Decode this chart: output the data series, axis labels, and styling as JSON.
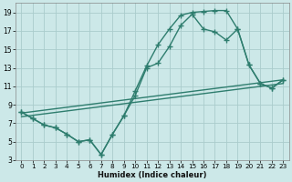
{
  "xlabel": "Humidex (Indice chaleur)",
  "bg_color": "#cce8e8",
  "grid_color": "#aacccc",
  "line_color": "#2e7d6e",
  "marker": "+",
  "linewidth": 1.0,
  "markersize": 4,
  "xlim": [
    -0.5,
    23.5
  ],
  "ylim": [
    3,
    20
  ],
  "xticks": [
    0,
    1,
    2,
    3,
    4,
    5,
    6,
    7,
    8,
    9,
    10,
    11,
    12,
    13,
    14,
    15,
    16,
    17,
    18,
    19,
    20,
    21,
    22,
    23
  ],
  "yticks": [
    3,
    5,
    7,
    9,
    11,
    13,
    15,
    17,
    19
  ],
  "series": [
    {
      "x": [
        0,
        1,
        2,
        3,
        4,
        5,
        6,
        7,
        8,
        9,
        10,
        11,
        12,
        13,
        14,
        15,
        16,
        17,
        18,
        19,
        20,
        21,
        22,
        23
      ],
      "y": [
        8.2,
        7.5,
        6.8,
        6.5,
        5.8,
        5.0,
        5.2,
        3.6,
        5.8,
        7.8,
        10.5,
        13.2,
        15.5,
        17.2,
        18.7,
        19.0,
        19.1,
        19.2,
        19.2,
        17.2,
        13.3,
        11.3,
        10.8,
        11.7
      ],
      "markers": true
    },
    {
      "x": [
        0,
        1,
        2,
        3,
        4,
        5,
        6,
        7,
        8,
        9,
        10,
        11,
        12,
        13,
        14,
        15,
        16,
        17,
        18,
        19,
        20,
        21,
        22,
        23
      ],
      "y": [
        8.2,
        7.5,
        6.8,
        6.5,
        5.8,
        5.0,
        5.2,
        3.6,
        5.8,
        7.8,
        10.0,
        13.0,
        13.5,
        15.3,
        17.6,
        18.8,
        17.2,
        16.9,
        16.0,
        17.2,
        13.3,
        11.3,
        10.8,
        11.7
      ],
      "markers": true
    },
    {
      "x": [
        0,
        23
      ],
      "y": [
        8.1,
        11.7
      ],
      "markers": false
    },
    {
      "x": [
        0,
        23
      ],
      "y": [
        7.7,
        11.3
      ],
      "markers": false
    }
  ]
}
